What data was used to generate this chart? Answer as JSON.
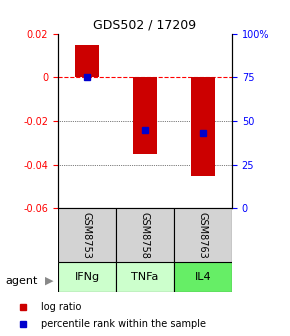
{
  "title": "GDS502 / 17209",
  "samples": [
    "GSM8753",
    "GSM8758",
    "GSM8763"
  ],
  "agents": [
    "IFNg",
    "TNFa",
    "IL4"
  ],
  "bar_values": [
    0.015,
    -0.035,
    -0.045
  ],
  "percentile_ranks": [
    75,
    45,
    43
  ],
  "bar_color": "#cc0000",
  "percentile_color": "#0000cc",
  "ylim_left": [
    -0.06,
    0.02
  ],
  "ylim_right": [
    0,
    100
  ],
  "yticks_left": [
    0.02,
    0.0,
    -0.02,
    -0.04,
    -0.06
  ],
  "yticks_right": [
    100,
    75,
    50,
    25,
    0
  ],
  "ytick_right_labels": [
    "100%",
    "75",
    "50",
    "25",
    "0"
  ],
  "gridlines_zero": 0.0,
  "gridlines_dotted": [
    -0.02,
    -0.04
  ],
  "agent_colors": [
    "#ccffcc",
    "#ccffcc",
    "#66ee66"
  ],
  "sample_bg": "#d3d3d3",
  "bar_width": 0.4,
  "legend_labels": [
    "log ratio",
    "percentile rank within the sample"
  ]
}
